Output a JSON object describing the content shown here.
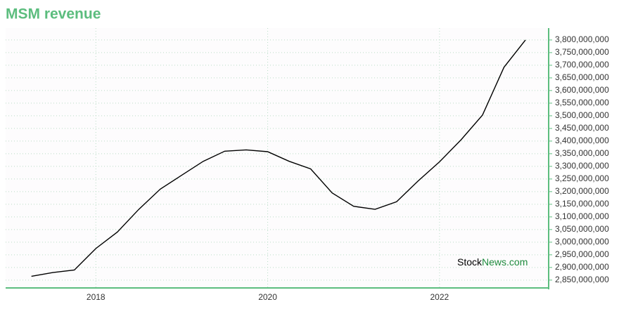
{
  "chart_data": {
    "type": "line",
    "title": "MSM revenue",
    "x": [
      2017.25,
      2017.5,
      2017.75,
      2018.0,
      2018.25,
      2018.5,
      2018.75,
      2019.0,
      2019.25,
      2019.5,
      2019.75,
      2020.0,
      2020.25,
      2020.5,
      2020.75,
      2021.0,
      2021.25,
      2021.5,
      2021.75,
      2022.0,
      2022.25,
      2022.5,
      2022.75,
      2023.0
    ],
    "values": [
      2865000000,
      2880000000,
      2890000000,
      2975000000,
      3040000000,
      3130000000,
      3210000000,
      3265000000,
      3320000000,
      3360000000,
      3365000000,
      3358000000,
      3320000000,
      3290000000,
      3195000000,
      3142000000,
      3130000000,
      3160000000,
      3242000000,
      3318000000,
      3405000000,
      3503000000,
      3692000000,
      3800000000
    ],
    "color": "#000000",
    "xlim": [
      2016.95,
      2023.27
    ],
    "xticks": [
      2018,
      2020,
      2022
    ],
    "ylim": [
      2819000000,
      3847000000
    ],
    "yticks": [
      {
        "value": 2850000000,
        "label": "2,850,000,000"
      },
      {
        "value": 2900000000,
        "label": "2,900,000,000"
      },
      {
        "value": 2950000000,
        "label": "2,950,000,000"
      },
      {
        "value": 3000000000,
        "label": "3,000,000,000"
      },
      {
        "value": 3050000000,
        "label": "3,050,000,000"
      },
      {
        "value": 3100000000,
        "label": "3,100,000,000"
      },
      {
        "value": 3150000000,
        "label": "3,150,000,000"
      },
      {
        "value": 3200000000,
        "label": "3,200,000,000"
      },
      {
        "value": 3250000000,
        "label": "3,250,000,000"
      },
      {
        "value": 3300000000,
        "label": "3,300,000,000"
      },
      {
        "value": 3350000000,
        "label": "3,350,000,000"
      },
      {
        "value": 3400000000,
        "label": "3,400,000,000"
      },
      {
        "value": 3450000000,
        "label": "3,450,000,000"
      },
      {
        "value": 3500000000,
        "label": "3,500,000,000"
      },
      {
        "value": 3550000000,
        "label": "3,550,000,000"
      },
      {
        "value": 3600000000,
        "label": "3,600,000,000"
      },
      {
        "value": 3650000000,
        "label": "3,650,000,000"
      },
      {
        "value": 3700000000,
        "label": "3,700,000,000"
      },
      {
        "value": 3750000000,
        "label": "3,750,000,000"
      },
      {
        "value": 3800000000,
        "label": "3,800,000,000"
      }
    ],
    "grid": true,
    "axis_color": "#5cbd7e",
    "watermark": [
      "Stock",
      "News.com"
    ]
  }
}
